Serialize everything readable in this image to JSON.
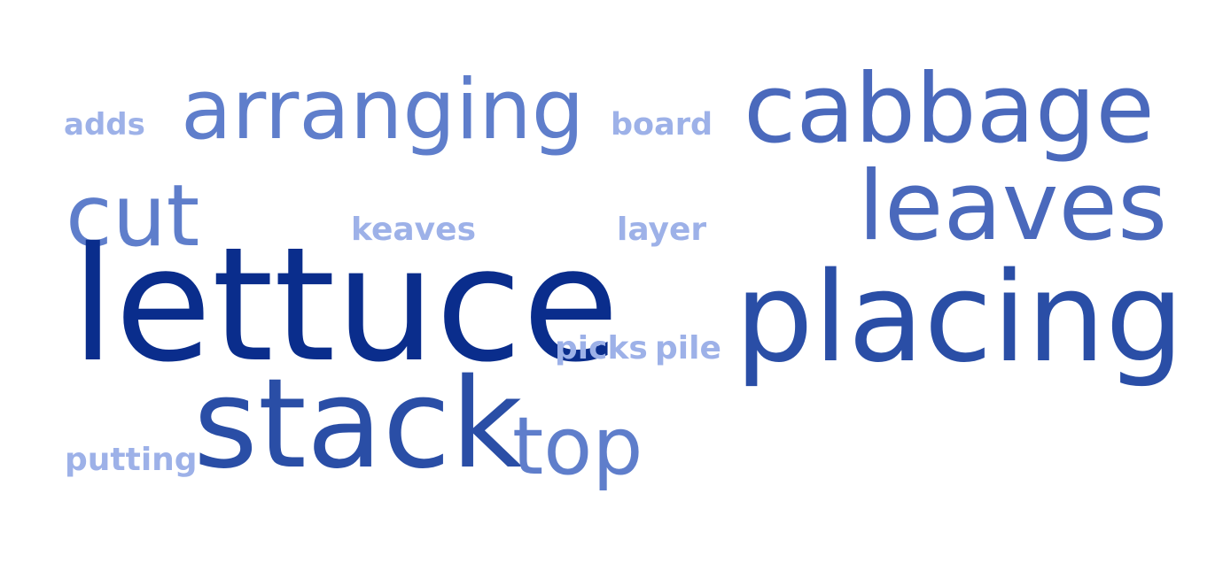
{
  "words": [
    {
      "text": "adds",
      "color": "#9db1e8",
      "weight": "bold"
    },
    {
      "text": "arranging",
      "color": "#5f7ecb"
    },
    {
      "text": "board",
      "color": "#9db1e8",
      "weight": "bold"
    },
    {
      "text": "cabbage",
      "color": "#4a69bc"
    },
    {
      "text": "cut",
      "color": "#5f7ecb"
    },
    {
      "text": "keaves",
      "color": "#9db1e8",
      "weight": "bold"
    },
    {
      "text": "layer",
      "color": "#9db1e8",
      "weight": "bold"
    },
    {
      "text": "leaves",
      "color": "#4a69bc"
    },
    {
      "text": "lettuce",
      "color": "#0a2d8c"
    },
    {
      "text": "placing",
      "color": "#2a4ea6"
    },
    {
      "text": "picks",
      "color": "#9db1e8",
      "weight": "bold"
    },
    {
      "text": "pile",
      "color": "#9db1e8",
      "weight": "bold"
    },
    {
      "text": "stack",
      "color": "#2a4ea6"
    },
    {
      "text": "top",
      "color": "#5f7ecb"
    },
    {
      "text": "putting",
      "color": "#9db1e8",
      "weight": "bold"
    }
  ]
}
